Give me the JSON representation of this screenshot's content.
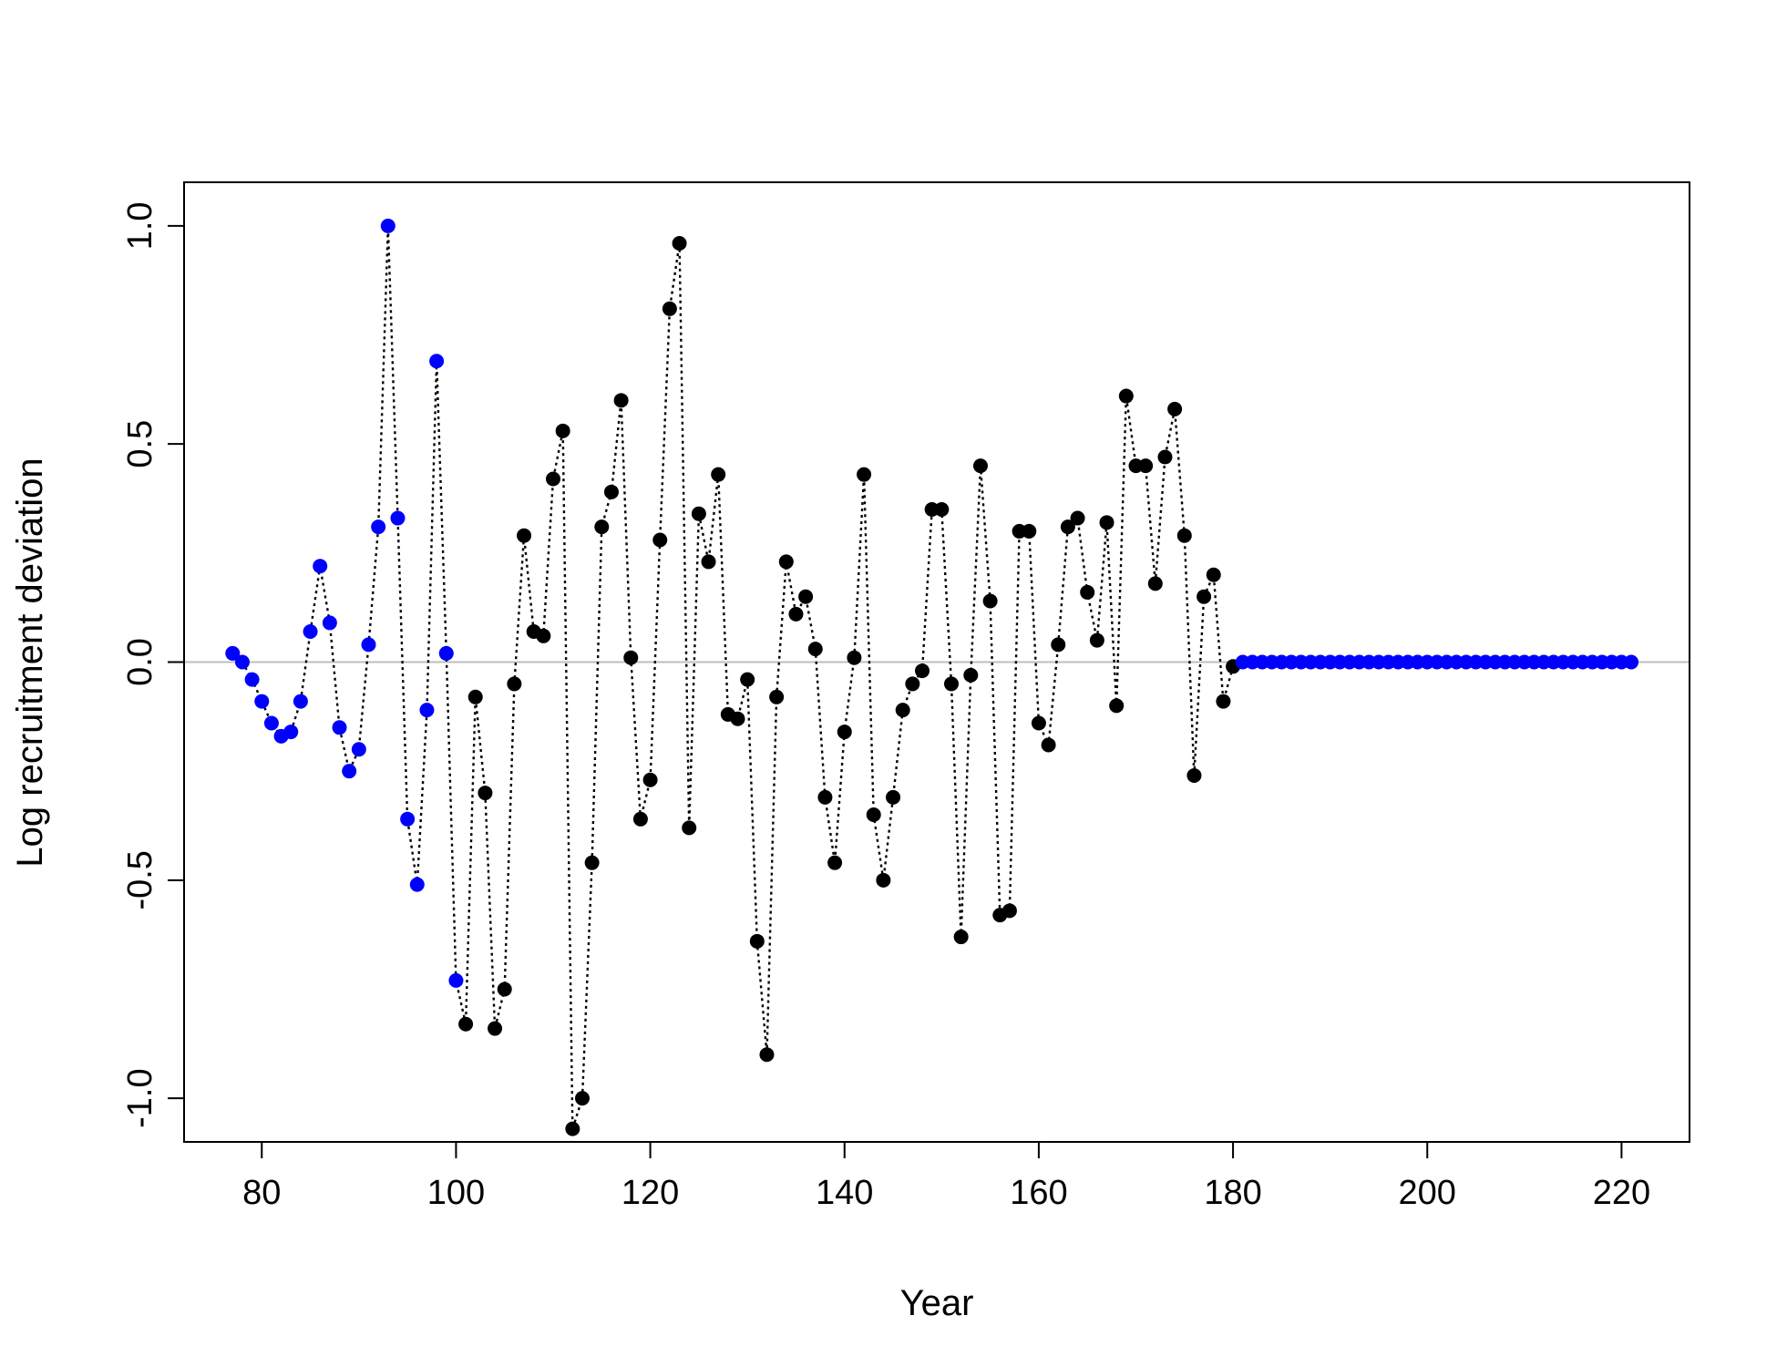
{
  "chart_data": {
    "type": "scatter",
    "title": "",
    "xlabel": "Year",
    "ylabel": "Log recruitment deviation",
    "xlim": [
      72,
      227
    ],
    "ylim": [
      -1.1,
      1.1
    ],
    "x_ticks": [
      80,
      100,
      120,
      140,
      160,
      180,
      200,
      220
    ],
    "y_ticks": [
      -1.0,
      -0.5,
      0.0,
      0.5,
      1.0
    ],
    "x_tick_labels": [
      "80",
      "100",
      "120",
      "140",
      "160",
      "180",
      "200",
      "220"
    ],
    "y_tick_labels": [
      "-1.0",
      "-0.5",
      "0.0",
      "0.5",
      "1.0"
    ],
    "reference_line": {
      "y": 0,
      "color": "#bebebe"
    },
    "connector": {
      "style": "dotted",
      "color": "#000000"
    },
    "grid": false,
    "colors": {
      "early": "#0000ff",
      "main": "#000000",
      "forecast": "#0000ff"
    },
    "series": [
      {
        "role": "early",
        "color": "#0000ff",
        "x": [
          77,
          78,
          79,
          80,
          81,
          82,
          83,
          84,
          85,
          86,
          87,
          88,
          89,
          90,
          91,
          92,
          93,
          94,
          95,
          96,
          97,
          98,
          99,
          100
        ],
        "y": [
          0.02,
          0.0,
          -0.04,
          -0.09,
          -0.14,
          -0.17,
          -0.16,
          -0.09,
          0.07,
          0.22,
          0.09,
          -0.15,
          -0.25,
          -0.2,
          0.04,
          0.31,
          1.0,
          0.33,
          -0.36,
          -0.51,
          -0.11,
          0.69,
          0.02,
          -0.73
        ]
      },
      {
        "role": "main",
        "color": "#000000",
        "x": [
          101,
          102,
          103,
          104,
          105,
          106,
          107,
          108,
          109,
          110,
          111,
          112,
          113,
          114,
          115,
          116,
          117,
          118,
          119,
          120,
          121,
          122,
          123,
          124,
          125,
          126,
          127,
          128,
          129,
          130,
          131,
          132,
          133,
          134,
          135,
          136,
          137,
          138,
          139,
          140,
          141,
          142,
          143,
          144,
          145,
          146,
          147,
          148,
          149,
          150,
          151,
          152,
          153,
          154,
          155,
          156,
          157,
          158,
          159,
          160,
          161,
          162,
          163,
          164,
          165,
          166,
          167,
          168,
          169,
          170,
          171,
          172,
          173,
          174,
          175,
          176,
          177,
          178,
          179,
          180
        ],
        "y": [
          -0.83,
          -0.08,
          -0.3,
          -0.84,
          -0.75,
          -0.05,
          0.29,
          0.07,
          0.06,
          0.42,
          0.53,
          -1.07,
          -1.0,
          -0.46,
          0.31,
          0.39,
          0.6,
          0.01,
          -0.36,
          -0.27,
          0.28,
          0.81,
          0.96,
          -0.38,
          0.34,
          0.23,
          0.43,
          -0.12,
          -0.13,
          -0.04,
          -0.64,
          -0.9,
          -0.08,
          0.23,
          0.11,
          0.15,
          0.03,
          -0.31,
          -0.46,
          -0.16,
          0.01,
          0.43,
          -0.35,
          -0.5,
          -0.31,
          -0.11,
          -0.05,
          -0.02,
          0.35,
          0.35,
          -0.05,
          -0.63,
          -0.03,
          0.45,
          0.14,
          -0.58,
          -0.57,
          0.3,
          0.3,
          -0.14,
          -0.19,
          0.04,
          0.31,
          0.33,
          0.16,
          0.05,
          0.32,
          -0.1,
          0.61,
          0.45,
          0.45,
          0.18,
          0.47,
          0.58,
          0.29,
          -0.26,
          0.15,
          0.2,
          -0.09,
          -0.01
        ]
      },
      {
        "role": "forecast",
        "color": "#0000ff",
        "x": [
          181,
          182,
          183,
          184,
          185,
          186,
          187,
          188,
          189,
          190,
          191,
          192,
          193,
          194,
          195,
          196,
          197,
          198,
          199,
          200,
          201,
          202,
          203,
          204,
          205,
          206,
          207,
          208,
          209,
          210,
          211,
          212,
          213,
          214,
          215,
          216,
          217,
          218,
          219,
          220,
          221
        ],
        "y": [
          0,
          0,
          0,
          0,
          0,
          0,
          0,
          0,
          0,
          0,
          0,
          0,
          0,
          0,
          0,
          0,
          0,
          0,
          0,
          0,
          0,
          0,
          0,
          0,
          0,
          0,
          0,
          0,
          0,
          0,
          0,
          0,
          0,
          0,
          0,
          0,
          0,
          0,
          0,
          0,
          0
        ]
      }
    ]
  }
}
